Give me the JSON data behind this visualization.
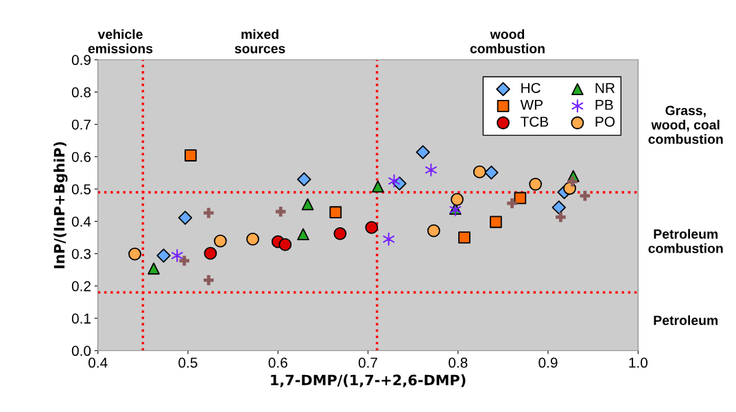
{
  "chart_data": {
    "type": "scatter",
    "xlabel": "1,7-DMP/(1,7-+2,6-DMP)",
    "ylabel": "InP/(InP+BghiP)",
    "xlim": [
      0.4,
      1.0
    ],
    "xticks": [
      0.4,
      0.5,
      0.6,
      0.7,
      0.8,
      0.9,
      {
        "value": 1.0,
        "label": "1.0"
      }
    ],
    "ylim": [
      0.0,
      0.9
    ],
    "yticks": [
      {
        "value": 0.0,
        "label": "0.0"
      },
      0.1,
      0.2,
      0.3,
      0.4,
      0.5,
      0.6,
      0.7,
      0.8,
      0.9
    ],
    "grid": false,
    "legend": "top right",
    "series": [
      {
        "name": "HC",
        "color": "#66aaff",
        "marker": "diamond",
        "x": [
          0.497,
          0.473,
          0.629,
          0.735,
          0.761,
          0.837,
          0.918,
          0.912
        ],
        "values": [
          0.411,
          0.294,
          0.53,
          0.517,
          0.614,
          0.551,
          0.49,
          0.443
        ]
      },
      {
        "name": "WP",
        "color": "#ff6600",
        "marker": "square",
        "x": [
          0.503,
          0.664,
          0.807,
          0.842,
          0.869
        ],
        "values": [
          0.604,
          0.428,
          0.35,
          0.398,
          0.472
        ]
      },
      {
        "name": "TCB",
        "color": "#dd0000",
        "marker": "circle",
        "x": [
          0.525,
          0.6,
          0.608,
          0.669,
          0.704
        ],
        "values": [
          0.301,
          0.337,
          0.328,
          0.362,
          0.381
        ]
      },
      {
        "name": "NR",
        "color": "#22aa22",
        "marker": "triangle",
        "x": [
          0.462,
          0.628,
          0.633,
          0.711,
          0.797,
          0.928
        ],
        "values": [
          0.254,
          0.36,
          0.453,
          0.508,
          0.439,
          0.54
        ]
      },
      {
        "name": "PB",
        "color": "#7722ff",
        "marker": "cross",
        "x": [
          0.488,
          0.723,
          0.729,
          0.77,
          0.797
        ],
        "values": [
          0.294,
          0.345,
          0.525,
          0.559,
          0.436
        ]
      },
      {
        "name": "PO",
        "color": "#ffaa4c",
        "marker": "circle",
        "x": [
          0.441,
          0.536,
          0.572,
          0.773,
          0.799,
          0.824,
          0.886,
          0.924
        ],
        "values": [
          0.299,
          0.339,
          0.345,
          0.371,
          0.468,
          0.553,
          0.515,
          0.502
        ]
      },
      {
        "color": "#8b5a5a",
        "marker": "cross",
        "x": [
          0.496,
          0.523,
          0.523,
          0.603,
          0.86,
          0.914,
          0.927,
          0.941
        ],
        "values": [
          0.278,
          0.218,
          0.426,
          0.43,
          0.456,
          0.413,
          0.523,
          0.479
        ]
      }
    ],
    "ref_lines": [
      {
        "axis": "x",
        "value": 0.45,
        "color": "#ff0000",
        "line_style": "dotted"
      },
      {
        "axis": "x",
        "value": 0.71,
        "color": "#ff0000",
        "line_style": "dotted"
      },
      {
        "axis": "y",
        "value": 0.49,
        "color": "#ff0000",
        "line_style": "dotted"
      },
      {
        "axis": "y",
        "value": 0.18,
        "color": "#ff0000",
        "line_style": "dotted"
      }
    ],
    "annotations": [
      "vehicle\nemissions",
      "mixed\nsources",
      "wood\ncombustion",
      "Grass,\nwood, coal\ncombustion",
      "Petroleum\ncombustion",
      "Petroleum"
    ]
  }
}
